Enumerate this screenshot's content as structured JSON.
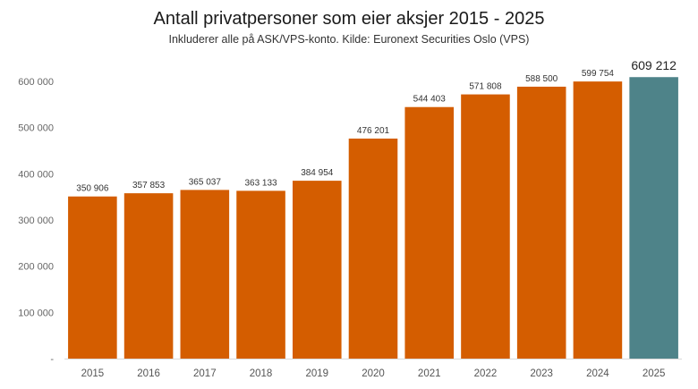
{
  "chart_data": {
    "type": "bar",
    "title": "Antall privatpersoner som eier aksjer 2015 - 2025",
    "subtitle": "Inkluderer alle på ASK/VPS-konto. Kilde: Euronext Securities Oslo (VPS)",
    "categories": [
      "2015",
      "2016",
      "2017",
      "2018",
      "2019",
      "2020",
      "2021",
      "2022",
      "2023",
      "2024",
      "2025"
    ],
    "values": [
      350906,
      357853,
      365037,
      363133,
      384954,
      476201,
      544403,
      571808,
      588500,
      599754,
      609212
    ],
    "value_labels": [
      "350 906",
      "357 853",
      "365 037",
      "363 133",
      "384 954",
      "476 201",
      "544 403",
      "571 808",
      "588 500",
      "599 754",
      "609 212"
    ],
    "ylim": [
      0,
      600000
    ],
    "yticks": [
      0,
      100000,
      200000,
      300000,
      400000,
      500000,
      600000
    ],
    "ytick_labels": [
      "-",
      "100 000",
      "200 000",
      "300 000",
      "400 000",
      "500 000",
      "600 000"
    ],
    "grid": false,
    "colors": {
      "bar": "#D45D00",
      "highlight": "#4E8389"
    },
    "highlight_index": 10
  }
}
